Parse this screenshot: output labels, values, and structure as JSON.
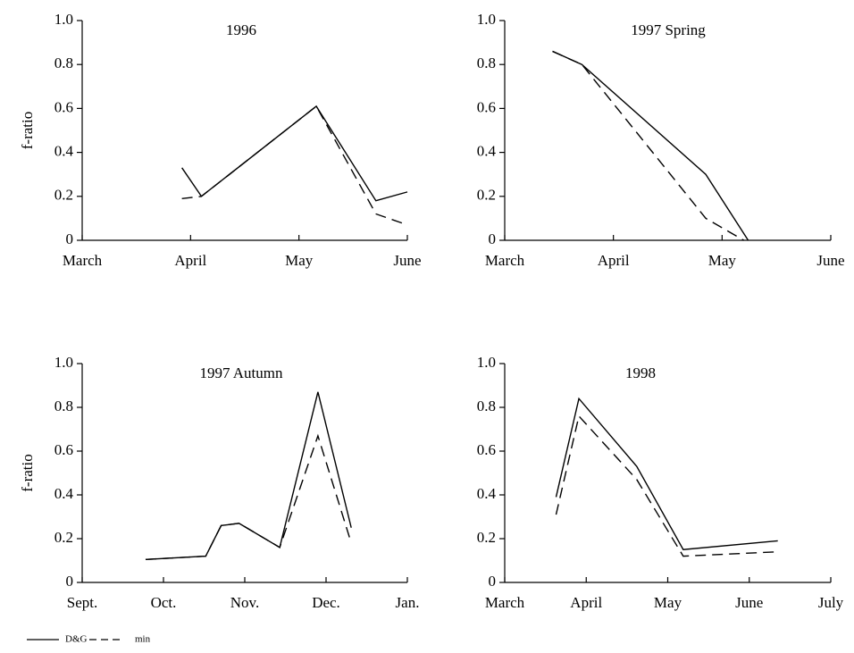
{
  "chart_data": [
    {
      "type": "line",
      "title": "1996",
      "ylabel": "f-ratio",
      "xlim": [
        0,
        3
      ],
      "xticks": [
        {
          "value": 0,
          "label": "March"
        },
        {
          "value": 1,
          "label": "April"
        },
        {
          "value": 2,
          "label": "May"
        },
        {
          "value": 3,
          "label": "June"
        }
      ],
      "ylim": [
        0,
        1
      ],
      "yticks": [
        0,
        0.2,
        0.4,
        0.6,
        0.8,
        {
          "value": 1,
          "label": "1.0"
        }
      ],
      "series": [
        {
          "name": "D&G",
          "color": "#000000",
          "dash": "solid",
          "x": [
            0.92,
            1.1,
            2.16,
            2.71,
            3.0
          ],
          "values": [
            0.33,
            0.2,
            0.61,
            0.18,
            0.22
          ]
        },
        {
          "name": "min",
          "color": "#000000",
          "dash": "dashed",
          "x": [
            0.92,
            1.1,
            2.16,
            2.71,
            3.0
          ],
          "values": [
            0.19,
            0.2,
            0.61,
            0.12,
            0.07
          ]
        }
      ]
    },
    {
      "type": "line",
      "title": "1997 Spring",
      "xlim": [
        0,
        3
      ],
      "xticks": [
        {
          "value": 0,
          "label": "March"
        },
        {
          "value": 1,
          "label": "April"
        },
        {
          "value": 2,
          "label": "May"
        },
        {
          "value": 3,
          "label": "June"
        }
      ],
      "ylim": [
        0,
        1
      ],
      "yticks": [
        0,
        0.2,
        0.4,
        0.6,
        0.8,
        {
          "value": 1,
          "label": "1.0"
        }
      ],
      "series": [
        {
          "name": "D&G",
          "color": "#000000",
          "dash": "solid",
          "x": [
            0.44,
            0.71,
            1.85,
            2.24
          ],
          "values": [
            0.86,
            0.8,
            0.3,
            0
          ]
        },
        {
          "name": "min",
          "color": "#000000",
          "dash": "dashed",
          "x": [
            0.44,
            0.71,
            1.85,
            2.2
          ],
          "values": [
            0.86,
            0.8,
            0.1,
            0
          ]
        }
      ]
    },
    {
      "type": "line",
      "title": "1997 Autumn",
      "ylabel": "f-ratio",
      "xlim": [
        0,
        4
      ],
      "xticks": [
        {
          "value": 0,
          "label": "Sept."
        },
        {
          "value": 1,
          "label": "Oct."
        },
        {
          "value": 2,
          "label": "Nov."
        },
        {
          "value": 3,
          "label": "Dec."
        },
        {
          "value": 4,
          "label": "Jan."
        }
      ],
      "ylim": [
        0,
        1
      ],
      "yticks": [
        0,
        0.2,
        0.4,
        0.6,
        0.8,
        {
          "value": 1,
          "label": "1.0"
        }
      ],
      "series": [
        {
          "name": "D&G",
          "color": "#000000",
          "dash": "solid",
          "x": [
            0.78,
            1.52,
            1.71,
            1.93,
            2.43,
            2.9,
            3.31
          ],
          "values": [
            0.105,
            0.12,
            0.26,
            0.27,
            0.16,
            0.87,
            0.25
          ]
        },
        {
          "name": "min",
          "color": "#000000",
          "dash": "dashed",
          "x": [
            0.78,
            1.52,
            1.71,
            1.93,
            2.43,
            2.9,
            3.31
          ],
          "values": [
            0.105,
            0.12,
            0.26,
            0.27,
            0.16,
            0.67,
            0.18
          ]
        }
      ]
    },
    {
      "type": "line",
      "title": "1998",
      "xlim": [
        0,
        4
      ],
      "xticks": [
        {
          "value": 0,
          "label": "March"
        },
        {
          "value": 1,
          "label": "April"
        },
        {
          "value": 2,
          "label": "May"
        },
        {
          "value": 3,
          "label": "June"
        },
        {
          "value": 4,
          "label": "July"
        }
      ],
      "ylim": [
        0,
        1
      ],
      "yticks": [
        0,
        0.2,
        0.4,
        0.6,
        0.8,
        {
          "value": 1,
          "label": "1.0"
        }
      ],
      "series": [
        {
          "name": "D&G",
          "color": "#000000",
          "dash": "solid",
          "x": [
            0.63,
            0.91,
            1.62,
            2.19,
            3.35
          ],
          "values": [
            0.39,
            0.84,
            0.53,
            0.15,
            0.19
          ]
        },
        {
          "name": "min",
          "color": "#000000",
          "dash": "dashed",
          "x": [
            0.63,
            0.91,
            1.62,
            2.19,
            3.35
          ],
          "values": [
            0.31,
            0.76,
            0.47,
            0.12,
            0.14
          ]
        }
      ]
    }
  ]
}
